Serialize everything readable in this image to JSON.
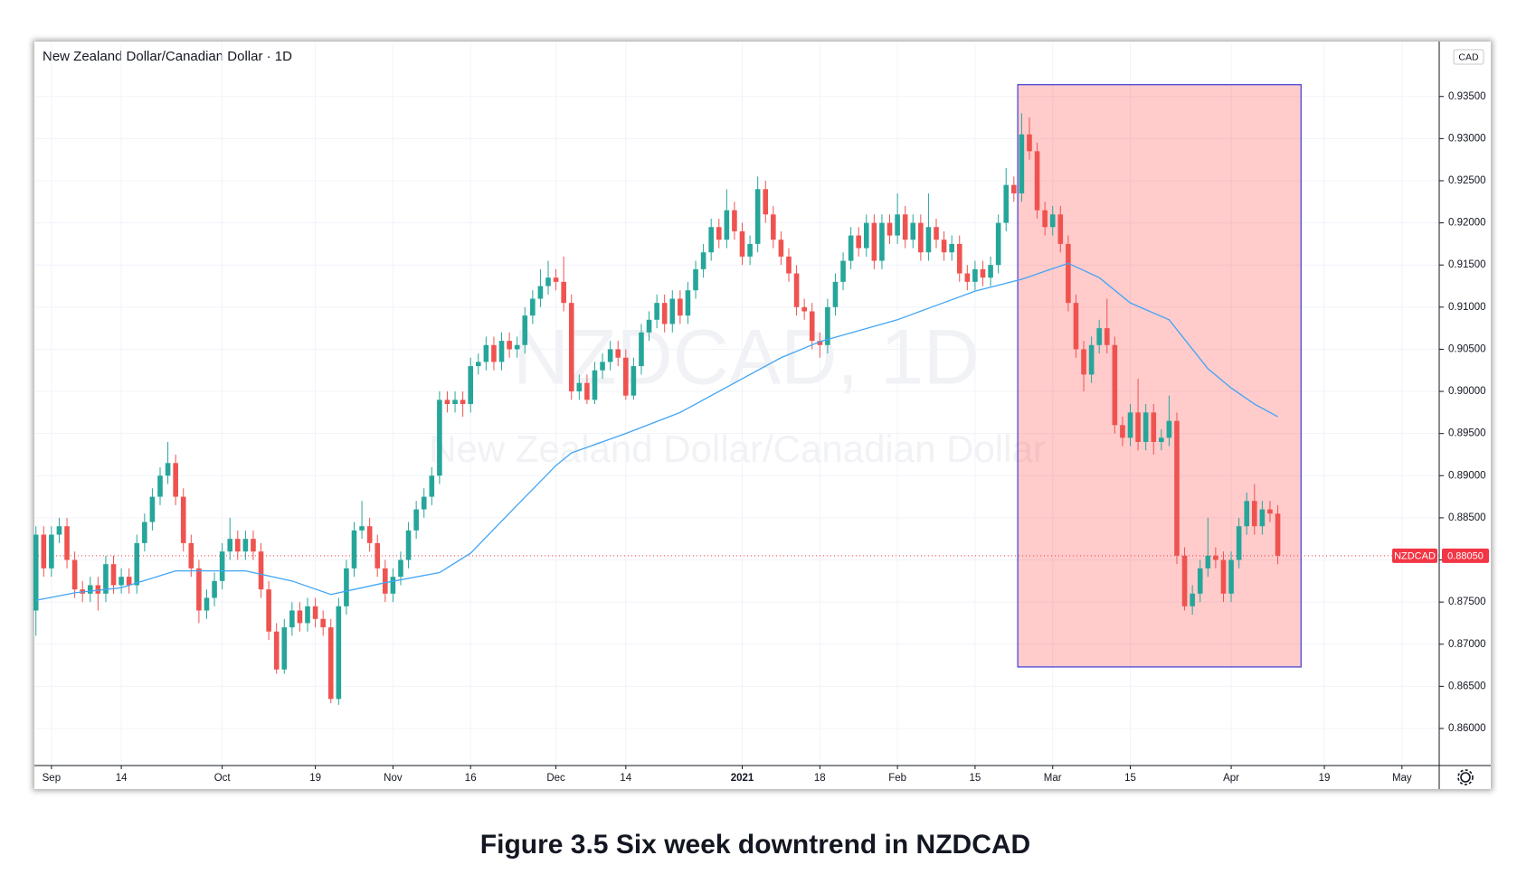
{
  "chart_data": {
    "type": "candlestick",
    "title": "New Zealand Dollar/Canadian Dollar · 1D",
    "watermark": [
      "NZDCAD, 1D",
      "New Zealand Dollar/Canadian Dollar"
    ],
    "caption": "Figure 3.5 Six week downtrend in NZDCAD",
    "currency": "CAD",
    "up_color": "#26a69a",
    "down_color": "#ef5350",
    "grid": true,
    "xlim": [
      -0.2,
      180.8
    ],
    "xticks": [
      {
        "value": 2,
        "label": "Sep"
      },
      {
        "value": 11,
        "label": "14"
      },
      {
        "value": 24,
        "label": "Oct"
      },
      {
        "value": 36,
        "label": "19"
      },
      {
        "value": 46,
        "label": "Nov"
      },
      {
        "value": 56,
        "label": "16"
      },
      {
        "value": 67,
        "label": "Dec"
      },
      {
        "value": 76,
        "label": "14"
      },
      {
        "value": 91,
        "label": "2021"
      },
      {
        "value": 101,
        "label": "18"
      },
      {
        "value": 111,
        "label": "Feb"
      },
      {
        "value": 121,
        "label": "15"
      },
      {
        "value": 131,
        "label": "Mar"
      },
      {
        "value": 141,
        "label": "15"
      },
      {
        "value": 154,
        "label": "Apr"
      },
      {
        "value": 166,
        "label": "19"
      },
      {
        "value": 176,
        "label": "May"
      }
    ],
    "ylim": [
      0.8556,
      0.9413
    ],
    "yticks": [
      {
        "value": 0.86,
        "label": "0.86000"
      },
      {
        "value": 0.865,
        "label": "0.86500"
      },
      {
        "value": 0.87,
        "label": "0.87000"
      },
      {
        "value": 0.875,
        "label": "0.87500"
      },
      {
        "value": 0.88,
        "label": "0.88000"
      },
      {
        "value": 0.885,
        "label": "0.88500"
      },
      {
        "value": 0.89,
        "label": "0.89000"
      },
      {
        "value": 0.895,
        "label": "0.89500"
      },
      {
        "value": 0.9,
        "label": "0.90000"
      },
      {
        "value": 0.905,
        "label": "0.90500"
      },
      {
        "value": 0.91,
        "label": "0.91000"
      },
      {
        "value": 0.915,
        "label": "0.91500"
      },
      {
        "value": 0.92,
        "label": "0.92000"
      },
      {
        "value": 0.925,
        "label": "0.92500"
      },
      {
        "value": 0.93,
        "label": "0.93000"
      },
      {
        "value": 0.935,
        "label": "0.93500"
      }
    ],
    "x": [
      0,
      1,
      2,
      3,
      4,
      5,
      6,
      7,
      8,
      9,
      10,
      11,
      12,
      13,
      14,
      15,
      16,
      17,
      18,
      19,
      20,
      21,
      22,
      23,
      24,
      25,
      26,
      27,
      28,
      29,
      30,
      31,
      32,
      33,
      34,
      35,
      36,
      37,
      38,
      39,
      40,
      41,
      42,
      43,
      44,
      45,
      46,
      47,
      48,
      49,
      50,
      51,
      52,
      53,
      54,
      55,
      56,
      57,
      58,
      59,
      60,
      61,
      62,
      63,
      64,
      65,
      66,
      67,
      68,
      69,
      70,
      71,
      72,
      73,
      74,
      75,
      76,
      77,
      78,
      79,
      80,
      81,
      82,
      83,
      84,
      85,
      86,
      87,
      88,
      89,
      90,
      91,
      92,
      93,
      94,
      95,
      96,
      97,
      98,
      99,
      100,
      101,
      102,
      103,
      104,
      105,
      106,
      107,
      108,
      109,
      110,
      111,
      112,
      113,
      114,
      115,
      116,
      117,
      118,
      119,
      120,
      121,
      122,
      123,
      124,
      125,
      126,
      127,
      128,
      129,
      130,
      131,
      132,
      133,
      134,
      135,
      136,
      137,
      138,
      139,
      140,
      141,
      142,
      143,
      144,
      145,
      146,
      147,
      148,
      149,
      150,
      151,
      152,
      153,
      154,
      155,
      156,
      157,
      158,
      159,
      160
    ],
    "open": [
      0.874,
      0.883,
      0.879,
      0.883,
      0.884,
      0.88,
      0.8765,
      0.876,
      0.877,
      0.876,
      0.8795,
      0.877,
      0.878,
      0.877,
      0.882,
      0.8845,
      0.8875,
      0.89,
      0.8915,
      0.8875,
      0.882,
      0.879,
      0.874,
      0.8755,
      0.8775,
      0.881,
      0.8825,
      0.881,
      0.8825,
      0.881,
      0.8765,
      0.8715,
      0.867,
      0.872,
      0.874,
      0.8725,
      0.8745,
      0.873,
      0.872,
      0.8635,
      0.8745,
      0.879,
      0.8835,
      0.884,
      0.882,
      0.879,
      0.876,
      0.878,
      0.88,
      0.8835,
      0.886,
      0.8875,
      0.89,
      0.899,
      0.8985,
      0.899,
      0.8985,
      0.903,
      0.9035,
      0.9055,
      0.9035,
      0.906,
      0.905,
      0.9055,
      0.909,
      0.911,
      0.9125,
      0.9135,
      0.913,
      0.9105,
      0.9,
      0.901,
      0.899,
      0.9025,
      0.9035,
      0.905,
      0.904,
      0.8995,
      0.903,
      0.907,
      0.9085,
      0.9105,
      0.908,
      0.911,
      0.909,
      0.912,
      0.9145,
      0.9165,
      0.9195,
      0.918,
      0.9215,
      0.919,
      0.916,
      0.9175,
      0.924,
      0.921,
      0.918,
      0.916,
      0.914,
      0.91,
      0.9095,
      0.906,
      0.9055,
      0.91,
      0.913,
      0.9155,
      0.9185,
      0.917,
      0.92,
      0.9155,
      0.92,
      0.9185,
      0.921,
      0.918,
      0.92,
      0.9165,
      0.9195,
      0.918,
      0.9165,
      0.9175,
      0.914,
      0.913,
      0.9145,
      0.9135,
      0.915,
      0.92,
      0.9245,
      0.9235,
      0.9305,
      0.9285,
      0.9215,
      0.9195,
      0.921,
      0.9175,
      0.9105,
      0.905,
      0.902,
      0.9055,
      0.9075,
      0.9055,
      0.896,
      0.8945,
      0.8975,
      0.894,
      0.8975,
      0.894,
      0.8945,
      0.8965,
      0.8805,
      0.8745,
      0.876,
      0.879,
      0.8805,
      0.88,
      0.876,
      0.88,
      0.884,
      0.887,
      0.884,
      0.886,
      0.8855
    ],
    "high": [
      0.884,
      0.884,
      0.884,
      0.885,
      0.885,
      0.881,
      0.8775,
      0.878,
      0.878,
      0.8805,
      0.8805,
      0.879,
      0.879,
      0.883,
      0.8855,
      0.8885,
      0.891,
      0.894,
      0.8925,
      0.8885,
      0.883,
      0.88,
      0.8765,
      0.8785,
      0.882,
      0.885,
      0.8835,
      0.8835,
      0.8835,
      0.882,
      0.8775,
      0.8725,
      0.873,
      0.875,
      0.875,
      0.8755,
      0.8755,
      0.874,
      0.873,
      0.8755,
      0.88,
      0.8845,
      0.887,
      0.885,
      0.883,
      0.88,
      0.879,
      0.881,
      0.8845,
      0.887,
      0.8885,
      0.891,
      0.9,
      0.9,
      0.9,
      0.9,
      0.904,
      0.9045,
      0.9065,
      0.9065,
      0.907,
      0.907,
      0.9065,
      0.91,
      0.912,
      0.9145,
      0.9155,
      0.9145,
      0.916,
      0.9115,
      0.902,
      0.902,
      0.9035,
      0.9045,
      0.906,
      0.906,
      0.905,
      0.904,
      0.908,
      0.9095,
      0.9115,
      0.9115,
      0.912,
      0.912,
      0.913,
      0.9155,
      0.9175,
      0.9205,
      0.9205,
      0.924,
      0.9225,
      0.92,
      0.9185,
      0.9255,
      0.925,
      0.922,
      0.919,
      0.917,
      0.915,
      0.911,
      0.9105,
      0.907,
      0.911,
      0.914,
      0.9165,
      0.9195,
      0.9195,
      0.921,
      0.921,
      0.921,
      0.921,
      0.9235,
      0.922,
      0.921,
      0.921,
      0.9235,
      0.9205,
      0.919,
      0.9185,
      0.9185,
      0.915,
      0.9155,
      0.9155,
      0.916,
      0.921,
      0.9265,
      0.9255,
      0.933,
      0.9325,
      0.9295,
      0.9225,
      0.922,
      0.922,
      0.9185,
      0.9115,
      0.906,
      0.9065,
      0.9085,
      0.911,
      0.9065,
      0.897,
      0.8985,
      0.9015,
      0.8985,
      0.8985,
      0.8955,
      0.8995,
      0.8975,
      0.8815,
      0.877,
      0.88,
      0.885,
      0.8815,
      0.881,
      0.881,
      0.885,
      0.888,
      0.889,
      0.887,
      0.887,
      0.8865
    ],
    "low": [
      0.871,
      0.878,
      0.878,
      0.882,
      0.879,
      0.8755,
      0.875,
      0.875,
      0.874,
      0.875,
      0.876,
      0.876,
      0.876,
      0.876,
      0.881,
      0.8835,
      0.8865,
      0.889,
      0.8865,
      0.881,
      0.878,
      0.8725,
      0.873,
      0.8745,
      0.8765,
      0.88,
      0.88,
      0.88,
      0.88,
      0.8755,
      0.8705,
      0.8665,
      0.8665,
      0.871,
      0.8715,
      0.8715,
      0.872,
      0.871,
      0.863,
      0.8628,
      0.8735,
      0.878,
      0.8825,
      0.881,
      0.878,
      0.875,
      0.875,
      0.877,
      0.879,
      0.8825,
      0.885,
      0.8865,
      0.889,
      0.8975,
      0.8975,
      0.897,
      0.8975,
      0.902,
      0.9025,
      0.9025,
      0.9025,
      0.904,
      0.904,
      0.9045,
      0.908,
      0.91,
      0.9115,
      0.912,
      0.9095,
      0.899,
      0.899,
      0.8985,
      0.8985,
      0.9015,
      0.9025,
      0.903,
      0.899,
      0.899,
      0.902,
      0.906,
      0.9075,
      0.907,
      0.907,
      0.908,
      0.908,
      0.911,
      0.9135,
      0.9155,
      0.917,
      0.917,
      0.918,
      0.915,
      0.915,
      0.9165,
      0.92,
      0.917,
      0.915,
      0.913,
      0.909,
      0.9085,
      0.905,
      0.904,
      0.9045,
      0.909,
      0.912,
      0.9145,
      0.916,
      0.916,
      0.9145,
      0.9145,
      0.9175,
      0.9175,
      0.917,
      0.917,
      0.9155,
      0.9155,
      0.917,
      0.9155,
      0.9155,
      0.913,
      0.912,
      0.912,
      0.9125,
      0.9125,
      0.914,
      0.919,
      0.9225,
      0.9225,
      0.9275,
      0.9205,
      0.9185,
      0.9185,
      0.9165,
      0.9095,
      0.904,
      0.9,
      0.901,
      0.9045,
      0.9045,
      0.895,
      0.8935,
      0.8935,
      0.893,
      0.893,
      0.8925,
      0.893,
      0.8935,
      0.8795,
      0.874,
      0.8735,
      0.875,
      0.878,
      0.879,
      0.875,
      0.875,
      0.879,
      0.883,
      0.883,
      0.883,
      0.8845,
      0.8795
    ],
    "close": [
      0.883,
      0.879,
      0.883,
      0.884,
      0.88,
      0.8765,
      0.876,
      0.877,
      0.876,
      0.8795,
      0.877,
      0.878,
      0.877,
      0.882,
      0.8845,
      0.8875,
      0.89,
      0.8915,
      0.8875,
      0.882,
      0.879,
      0.874,
      0.8755,
      0.8775,
      0.881,
      0.8825,
      0.881,
      0.8825,
      0.881,
      0.8765,
      0.8715,
      0.867,
      0.872,
      0.874,
      0.8725,
      0.8745,
      0.873,
      0.872,
      0.8635,
      0.8745,
      0.879,
      0.8835,
      0.884,
      0.882,
      0.879,
      0.876,
      0.878,
      0.88,
      0.8835,
      0.886,
      0.8875,
      0.89,
      0.899,
      0.8985,
      0.899,
      0.8985,
      0.903,
      0.9035,
      0.9055,
      0.9035,
      0.906,
      0.905,
      0.9055,
      0.909,
      0.911,
      0.9125,
      0.9135,
      0.913,
      0.9105,
      0.9,
      0.901,
      0.899,
      0.9025,
      0.9035,
      0.905,
      0.904,
      0.8995,
      0.903,
      0.907,
      0.9085,
      0.9105,
      0.908,
      0.911,
      0.909,
      0.912,
      0.9145,
      0.9165,
      0.9195,
      0.918,
      0.9215,
      0.919,
      0.916,
      0.9175,
      0.924,
      0.921,
      0.918,
      0.916,
      0.914,
      0.91,
      0.9095,
      0.906,
      0.9055,
      0.91,
      0.913,
      0.9155,
      0.9185,
      0.917,
      0.92,
      0.9155,
      0.92,
      0.9185,
      0.921,
      0.918,
      0.92,
      0.9165,
      0.9195,
      0.918,
      0.9165,
      0.9175,
      0.914,
      0.913,
      0.9145,
      0.9135,
      0.915,
      0.92,
      0.9245,
      0.9235,
      0.9305,
      0.9285,
      0.9215,
      0.9195,
      0.921,
      0.9175,
      0.9105,
      0.905,
      0.902,
      0.9055,
      0.9075,
      0.9055,
      0.896,
      0.8945,
      0.8975,
      0.894,
      0.8975,
      0.894,
      0.8945,
      0.8965,
      0.8805,
      0.8745,
      0.876,
      0.879,
      0.8805,
      0.88,
      0.876,
      0.88,
      0.884,
      0.887,
      0.884,
      0.886,
      0.8855,
      0.8805
    ],
    "moving_average": {
      "color": "#42a5f5",
      "x": [
        0,
        5,
        11,
        18,
        27,
        33,
        38,
        45,
        52,
        56,
        62,
        67,
        69,
        76,
        83,
        90,
        96,
        101,
        106,
        111,
        116,
        121,
        127,
        133,
        137,
        141,
        146,
        151,
        154,
        157,
        160
      ],
      "values": [
        0.8752,
        0.8761,
        0.8767,
        0.8787,
        0.8787,
        0.8775,
        0.8759,
        0.8773,
        0.8785,
        0.8808,
        0.8865,
        0.8912,
        0.8927,
        0.895,
        0.8975,
        0.901,
        0.904,
        0.9059,
        0.9072,
        0.9085,
        0.9102,
        0.9119,
        0.9133,
        0.9152,
        0.9135,
        0.9105,
        0.9085,
        0.9027,
        0.9004,
        0.8985,
        0.897
      ]
    },
    "highlight": {
      "x": [
        126.5,
        163
      ],
      "y": [
        0.8673,
        0.9364
      ],
      "color": "#ff5252",
      "border": "#4a4ad8"
    },
    "last_price": {
      "name": "NZDCAD",
      "value": 0.8805,
      "label": "0.88050",
      "color": "#f23645"
    }
  }
}
